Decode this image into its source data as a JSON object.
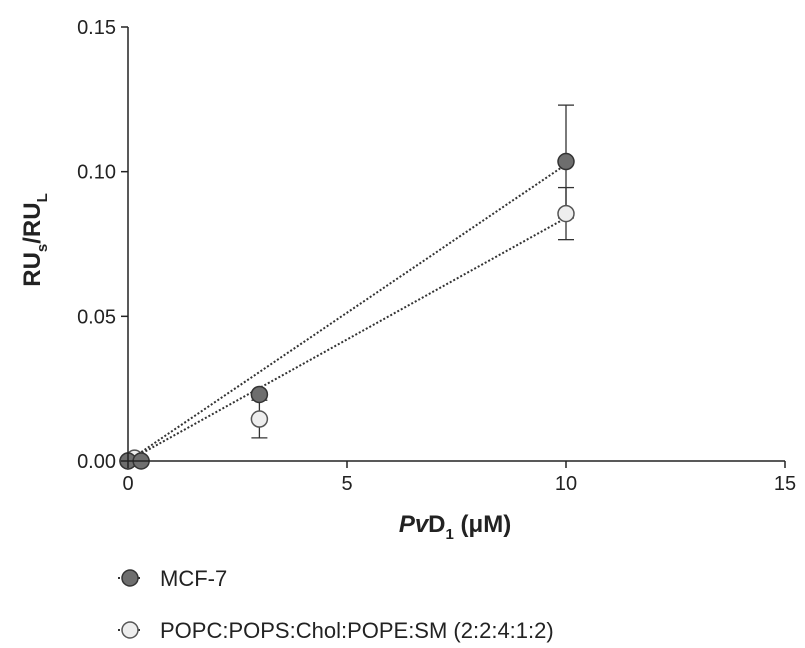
{
  "chart_data": {
    "type": "scatter",
    "xlabel": {
      "italic": "Pv",
      "main": "D",
      "sub": "1",
      "unit": " (μM)"
    },
    "ylabel": {
      "a": "RU",
      "a_sub": "s",
      "slash": "/",
      "b": "RU",
      "b_sub": "L"
    },
    "xlim": [
      0,
      15
    ],
    "ylim": [
      0,
      0.15
    ],
    "xticks": [
      0,
      5,
      10,
      15
    ],
    "yticks": [
      0,
      0.05,
      0.1,
      0.15
    ],
    "xtick_labels": [
      "0",
      "5",
      "10",
      "15"
    ],
    "ytick_labels": [
      "0.00",
      "0.05",
      "0.10",
      "0.15"
    ],
    "grid": false,
    "legend_placement": "bottom-left",
    "series": [
      {
        "name": "MCF-7",
        "color": "#6e6e6e",
        "points": [
          {
            "x": 0,
            "y": 0.0,
            "err": 0
          },
          {
            "x": 0.3,
            "y": 0.0,
            "err": 0
          },
          {
            "x": 3,
            "y": 0.023,
            "err": 0.001
          },
          {
            "x": 10,
            "y": 0.1035,
            "err": 0.0195
          }
        ],
        "fit": {
          "x0": 0,
          "y0": 0.0,
          "x1": 10,
          "y1": 0.1025
        }
      },
      {
        "name": "POPC:POPS:Chol:POPE:SM (2:2:4:1:2)",
        "color": "#eeeeee",
        "points": [
          {
            "x": 0,
            "y": 0.0,
            "err": 0
          },
          {
            "x": 0.15,
            "y": 0.001,
            "err": 0
          },
          {
            "x": 3,
            "y": 0.0145,
            "err": 0.0065
          },
          {
            "x": 10,
            "y": 0.0855,
            "err": 0.009
          }
        ],
        "fit": {
          "x0": 0,
          "y0": 0.0,
          "x1": 10,
          "y1": 0.084
        }
      }
    ]
  }
}
